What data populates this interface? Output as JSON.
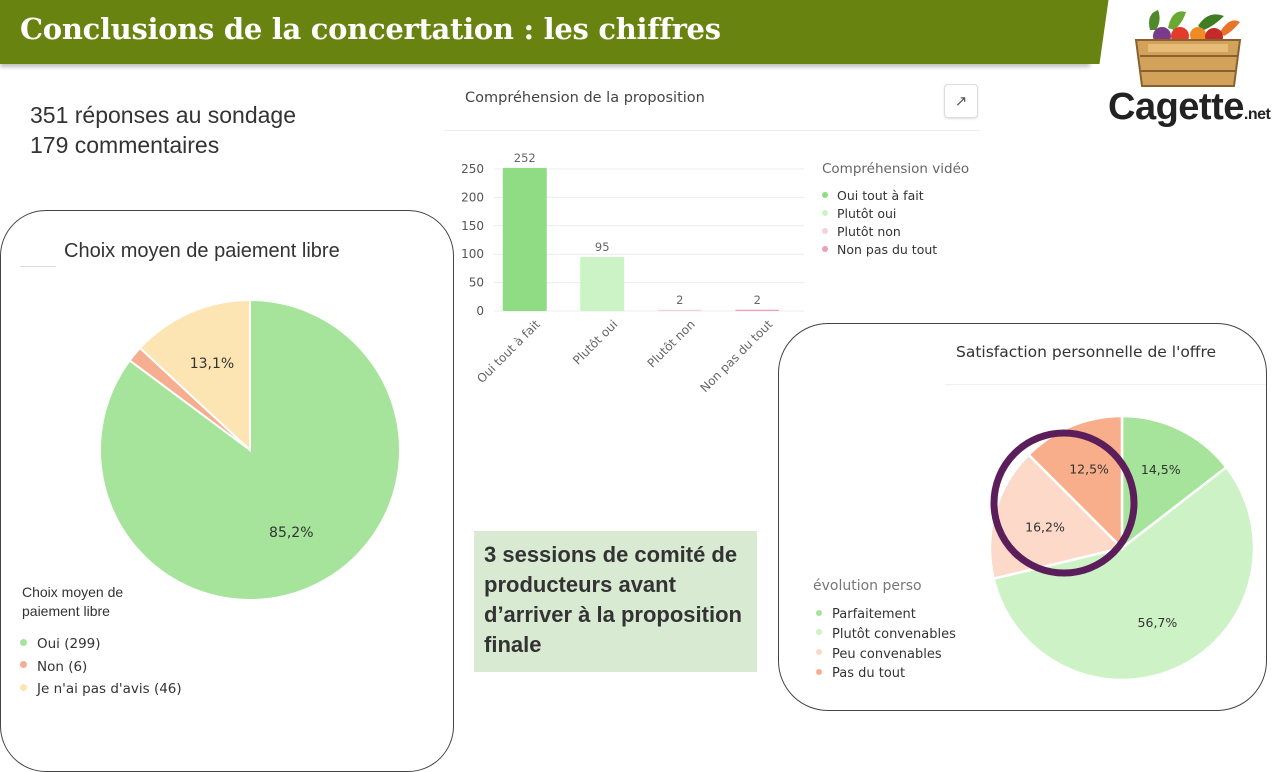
{
  "header": {
    "title": "Conclusions de la concertation : les chiffres"
  },
  "logo": {
    "word": "Cagette",
    "suffix": ".net"
  },
  "stats": {
    "responses": "351 réponses au sondage",
    "comments": "179 commentaires"
  },
  "highlight": {
    "text": "3 sessions de comité de producteurs avant d’arriver à la proposition finale"
  },
  "colors": {
    "header": "#68830f",
    "highlight_bg": "#d9ead3",
    "circle": "#5b1e5a"
  },
  "icons": {
    "expand": "arrow-up-right-icon",
    "logo": "vegetable-crate-icon"
  },
  "chart_data": [
    {
      "type": "pie",
      "title": "Choix moyen de paiement libre",
      "legend_title": "Choix moyen de paiement libre",
      "legend_position": "bottom-left",
      "slices": [
        {
          "label": "Oui (299)",
          "value": 299,
          "percent_label": "85,2%",
          "color": "#a6e49b"
        },
        {
          "label": "Non (6)",
          "value": 6,
          "percent_label": "",
          "color": "#f7ad8f"
        },
        {
          "label": "Je n'ai pas d'avis (46)",
          "value": 46,
          "percent_label": "13,1%",
          "color": "#fde4b3"
        }
      ]
    },
    {
      "type": "bar",
      "title": "Compréhension de la proposition",
      "legend_title": "Compréhension vidéo",
      "legend_position": "right",
      "categories": [
        "Oui tout à fait",
        "Plutôt oui",
        "Plutôt non",
        "Non pas du tout"
      ],
      "values": [
        252,
        95,
        2,
        2
      ],
      "colors": [
        "#8fdc84",
        "#cbf3c6",
        "#f8d2d9",
        "#ee9fb2"
      ],
      "yticks": [
        0,
        50,
        100,
        150,
        200,
        250
      ],
      "ylim": [
        0,
        260
      ],
      "grid": true
    },
    {
      "type": "pie",
      "title": "Satisfaction personnelle de l'offre",
      "legend_title": "évolution perso",
      "legend_position": "bottom-left",
      "slices": [
        {
          "label": "Parfaitement",
          "percent": 14.5,
          "percent_label": "14,5%",
          "color": "#a6e49b"
        },
        {
          "label": "Plutôt convenables",
          "percent": 56.7,
          "percent_label": "56,7%",
          "color": "#cdf2c6"
        },
        {
          "label": "Peu convenables",
          "percent": 16.2,
          "percent_label": "16,2%",
          "color": "#fcd9c8"
        },
        {
          "label": "Pas du tout",
          "percent": 12.5,
          "percent_label": "12,5%",
          "color": "#f8ae8a"
        }
      ]
    }
  ]
}
